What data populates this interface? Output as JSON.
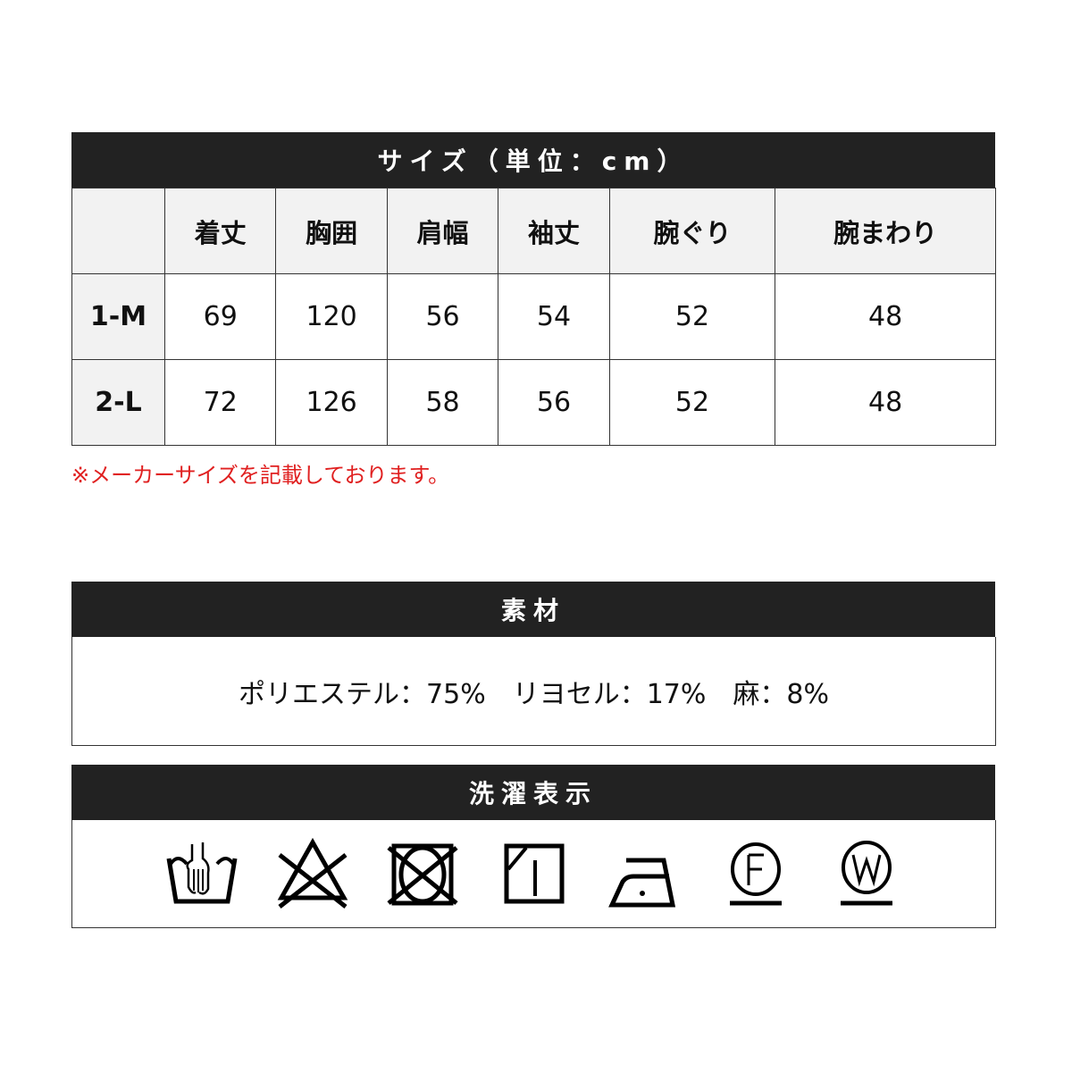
{
  "size_section": {
    "title": "サイズ（単位：cm）",
    "columns": [
      "",
      "着丈",
      "胸囲",
      "肩幅",
      "袖丈",
      "腕ぐり",
      "腕まわり"
    ],
    "rows": [
      {
        "size": "1-M",
        "values": [
          "69",
          "120",
          "56",
          "54",
          "52",
          "48"
        ]
      },
      {
        "size": "2-L",
        "values": [
          "72",
          "126",
          "58",
          "56",
          "52",
          "48"
        ]
      }
    ],
    "note": "※メーカーサイズを記載しております。"
  },
  "material_section": {
    "title": "素材",
    "text": "ポリエステル：75%　リヨセル：17%　麻：8%"
  },
  "care_section": {
    "title": "洗濯表示",
    "icons": [
      "hand-wash-icon",
      "no-bleach-icon",
      "no-tumble-dry-icon",
      "line-dry-shade-icon",
      "iron-low-icon",
      "dry-clean-f-icon",
      "wet-clean-w-icon"
    ]
  },
  "colors": {
    "header_bg": "#222222",
    "cell_bg": "#f2f2f2",
    "note": "#e02020"
  }
}
